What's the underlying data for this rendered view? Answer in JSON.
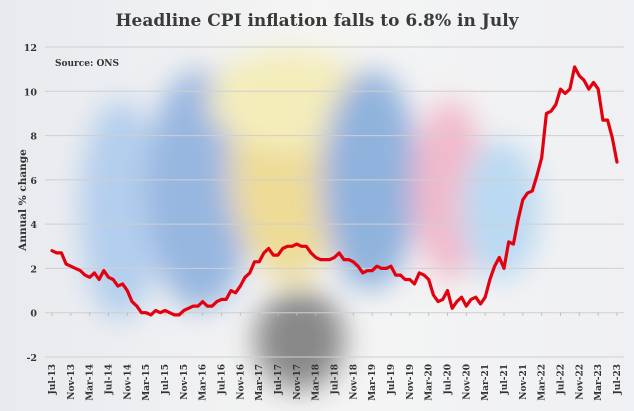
{
  "chart_data": {
    "type": "line",
    "title": "Headline CPI inflation falls to 6.8% in July",
    "source": "Source: ONS",
    "ylabel": "Annual % change",
    "xlabel": "",
    "ylim": [
      -2,
      12
    ],
    "yticks": [
      -2,
      0,
      2,
      4,
      6,
      8,
      10,
      12
    ],
    "grid": true,
    "line_color": "#e3000f",
    "x_tick_labels": [
      "Jul-13",
      "Nov-13",
      "Mar-14",
      "Jul-14",
      "Nov-14",
      "Mar-15",
      "Jul-15",
      "Nov-15",
      "Mar-16",
      "Jul-16",
      "Nov-16",
      "Mar-17",
      "Jul-17",
      "Nov-17",
      "Mar-18",
      "Jul-18",
      "Nov-18",
      "Mar-19",
      "Jul-19",
      "Nov-19",
      "Mar-20",
      "Jul-20",
      "Nov-20",
      "Mar-21",
      "Jul-21",
      "Nov-21",
      "Mar-22",
      "Jul-22",
      "Nov-22",
      "Mar-23",
      "Jul-23"
    ],
    "x_start": "Jul-13",
    "x_end": "Jul-23",
    "frequency": "monthly",
    "values": [
      2.8,
      2.7,
      2.7,
      2.2,
      2.1,
      2.0,
      1.9,
      1.7,
      1.6,
      1.8,
      1.5,
      1.9,
      1.6,
      1.5,
      1.2,
      1.3,
      1.0,
      0.5,
      0.3,
      0.0,
      0.0,
      -0.1,
      0.1,
      0.0,
      0.1,
      0.0,
      -0.1,
      -0.1,
      0.1,
      0.2,
      0.3,
      0.3,
      0.5,
      0.3,
      0.3,
      0.5,
      0.6,
      0.6,
      1.0,
      0.9,
      1.2,
      1.6,
      1.8,
      2.3,
      2.3,
      2.7,
      2.9,
      2.6,
      2.6,
      2.9,
      3.0,
      3.0,
      3.1,
      3.0,
      3.0,
      2.7,
      2.5,
      2.4,
      2.4,
      2.4,
      2.5,
      2.7,
      2.4,
      2.4,
      2.3,
      2.1,
      1.8,
      1.9,
      1.9,
      2.1,
      2.0,
      2.0,
      2.1,
      1.7,
      1.7,
      1.5,
      1.5,
      1.3,
      1.8,
      1.7,
      1.5,
      0.8,
      0.5,
      0.6,
      1.0,
      0.2,
      0.5,
      0.7,
      0.3,
      0.6,
      0.7,
      0.4,
      0.7,
      1.5,
      2.1,
      2.5,
      2.0,
      3.2,
      3.1,
      4.2,
      5.1,
      5.4,
      5.5,
      6.2,
      7.0,
      9.0,
      9.1,
      9.4,
      10.1,
      9.9,
      10.1,
      11.1,
      10.7,
      10.5,
      10.1,
      10.4,
      10.1,
      8.7,
      8.7,
      7.9,
      6.8
    ]
  }
}
